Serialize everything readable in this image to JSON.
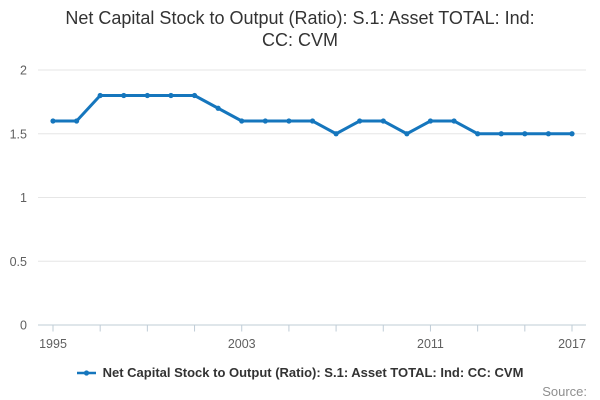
{
  "title": "Net Capital Stock to Output (Ratio): S.1: Asset TOTAL: Ind: CC: CVM",
  "source": {
    "label": "Source:"
  },
  "legend": {
    "position": "bottom",
    "items": [
      {
        "label": "Net Capital Stock to Output (Ratio): S.1: Asset TOTAL: Ind: CC: CVM",
        "marker": "line-with-dot"
      }
    ]
  },
  "colors": {
    "series_blue": "#1576bd",
    "gridline": "#e6e6e6",
    "axis_line": "#bfccd6",
    "tick_label": "#606060",
    "title_text": "#333333",
    "legend_text": "#333333",
    "source_text": "#8f8f8f",
    "background": "#ffffff"
  },
  "chart_data": {
    "type": "line",
    "title": "Net Capital Stock to Output (Ratio): S.1: Asset TOTAL: Ind: CC: CVM",
    "x": [
      1995,
      1996,
      1997,
      1998,
      1999,
      2000,
      2001,
      2002,
      2003,
      2004,
      2005,
      2006,
      2007,
      2008,
      2009,
      2010,
      2011,
      2012,
      2013,
      2014,
      2015,
      2016,
      2017
    ],
    "series": [
      {
        "name": "Net Capital Stock to Output (Ratio): S.1: Asset TOTAL: Ind: CC: CVM",
        "values": [
          1.6,
          1.6,
          1.8,
          1.8,
          1.8,
          1.8,
          1.8,
          1.7,
          1.6,
          1.6,
          1.6,
          1.6,
          1.5,
          1.6,
          1.6,
          1.5,
          1.6,
          1.6,
          1.5,
          1.5,
          1.5,
          1.5,
          1.5
        ]
      }
    ],
    "xlabel": "",
    "ylabel": "",
    "ylim": [
      0,
      2
    ],
    "yticks": [
      0,
      0.5,
      1,
      1.5,
      2
    ],
    "ytick_labels": [
      "0",
      "0.5",
      "1",
      "1.5",
      "2"
    ],
    "xticks_labeled": [
      1995,
      2003,
      2011,
      2017
    ],
    "xtick_labels": [
      "1995",
      "2003",
      "2011",
      "2017"
    ],
    "xticks_minor_step": 2,
    "grid": true,
    "marker": "circle",
    "legend_position": "bottom"
  }
}
